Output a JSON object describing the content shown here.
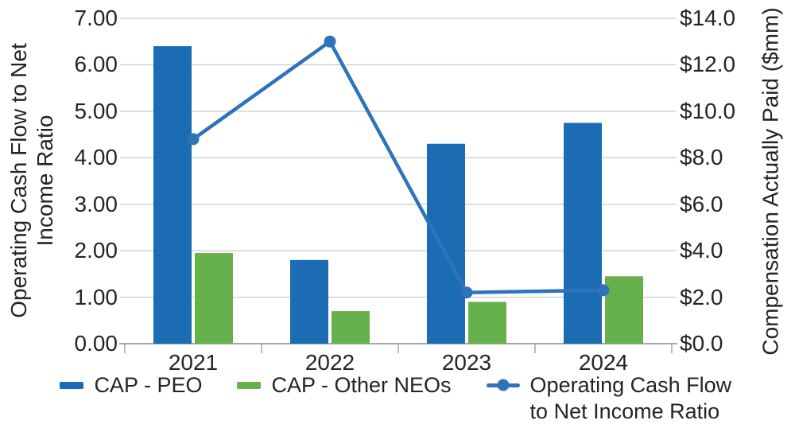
{
  "chart_data": {
    "type": "combo-bar-line",
    "categories": [
      "2021",
      "2022",
      "2023",
      "2024"
    ],
    "series": [
      {
        "name": "CAP - PEO",
        "type": "bar",
        "axis": "right",
        "color": "#1C6CB4",
        "values": [
          12.8,
          3.6,
          8.6,
          9.5
        ]
      },
      {
        "name": "CAP - Other NEOs",
        "type": "bar",
        "axis": "right",
        "color": "#66B14C",
        "values": [
          3.9,
          1.4,
          1.8,
          2.9
        ]
      },
      {
        "name": "Operating Cash Flow to Net Income Ratio",
        "type": "line",
        "axis": "left",
        "color": "#2D73BB",
        "values": [
          4.4,
          6.5,
          1.1,
          1.15
        ]
      }
    ],
    "left_axis": {
      "label": "Operating Cash Flow to Net Income Ratio",
      "min": 0,
      "max": 7,
      "ticks": [
        "0.00",
        "1.00",
        "2.00",
        "3.00",
        "4.00",
        "5.00",
        "6.00",
        "7.00"
      ]
    },
    "right_axis": {
      "label": "Compensation Actually Paid ($mm)",
      "min": 0,
      "max": 14,
      "ticks": [
        "$0.0",
        "$2.0",
        "$4.0",
        "$6.0",
        "$8.0",
        "$10.0",
        "$12.0",
        "$14.0"
      ]
    },
    "grid": {
      "color": "#C9C9C9",
      "axis_line_color": "#A6A6A6",
      "grid_on": true
    },
    "legend_position": "bottom"
  }
}
